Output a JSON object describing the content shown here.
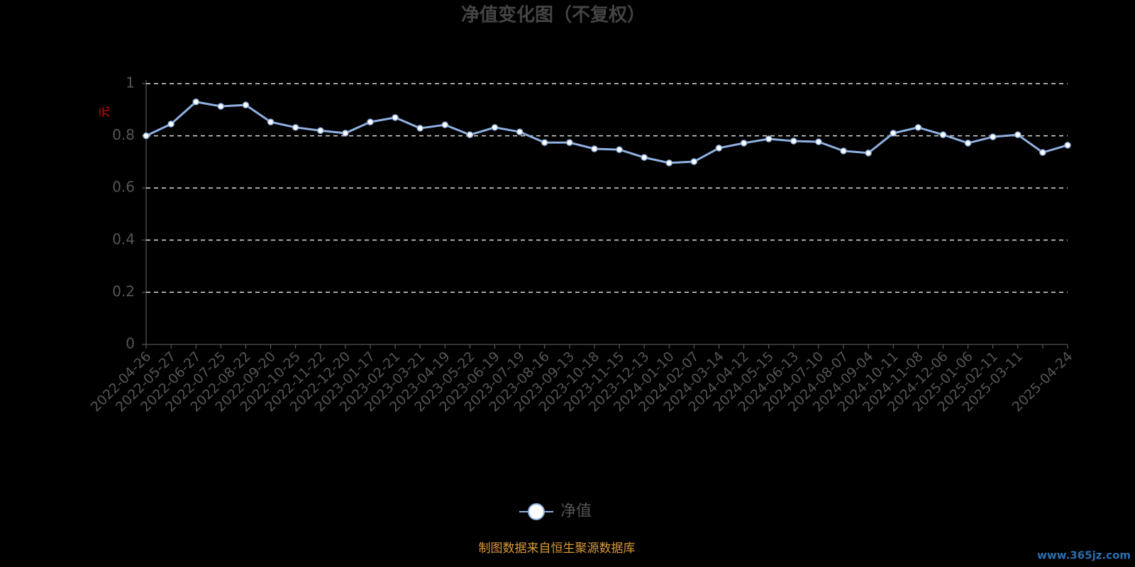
{
  "chart_data": {
    "type": "line",
    "title": "净值变化图（不复权）",
    "y_label": "元",
    "categories": [
      "2022-04-26",
      "2022-05-27",
      "2022-06-27",
      "2022-07-25",
      "2022-08-22",
      "2022-09-20",
      "2022-10-25",
      "2022-11-22",
      "2022-12-20",
      "2023-01-17",
      "2023-02-21",
      "2023-03-21",
      "2023-04-19",
      "2023-05-22",
      "2023-06-19",
      "2023-07-19",
      "2023-08-16",
      "2023-09-13",
      "2023-10-18",
      "2023-11-15",
      "2023-12-13",
      "2024-01-10",
      "2024-02-07",
      "2024-03-14",
      "2024-04-12",
      "2024-05-15",
      "2024-06-13",
      "2024-07-10",
      "2024-08-07",
      "2024-09-04",
      "2024-10-11",
      "2024-11-08",
      "2024-12-06",
      "2025-01-06",
      "2025-02-11",
      "2025-03-11",
      null,
      "2025-04-24"
    ],
    "series": [
      {
        "name": "净值",
        "color": "#8fb0e0",
        "values": [
          0.8,
          0.845,
          0.93,
          0.913,
          0.918,
          0.853,
          0.832,
          0.82,
          0.81,
          0.853,
          0.87,
          0.829,
          0.842,
          0.804,
          0.832,
          0.815,
          0.774,
          0.774,
          0.75,
          0.747,
          0.717,
          0.696,
          0.701,
          0.753,
          0.772,
          0.788,
          0.78,
          0.777,
          0.742,
          0.734,
          0.81,
          0.832,
          0.804,
          0.772,
          0.796,
          0.804,
          0.736,
          0.764
        ]
      }
    ],
    "ylim": [
      0,
      1
    ],
    "yticks": [
      0,
      0.2,
      0.4,
      0.6,
      0.8,
      1
    ],
    "grid": true,
    "legend": "bottom",
    "source": "制图数据来自恒生聚源数据库",
    "watermark": "www.365jz.com"
  }
}
